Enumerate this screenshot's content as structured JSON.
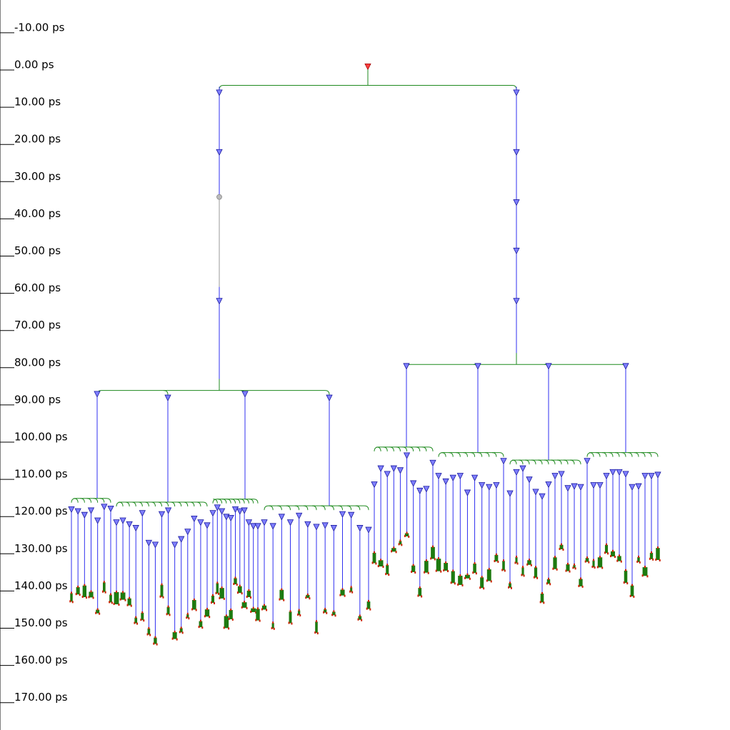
{
  "time_axis": {
    "unit": "ps",
    "tick_labels": [
      "-10.00 ps",
      "0.00 ps",
      "10.00 ps",
      "20.00 ps",
      "30.00 ps",
      "40.00 ps",
      "50.00 ps",
      "60.00 ps",
      "70.00 ps",
      "80.00 ps",
      "90.00 ps",
      "100.00 ps",
      "110.00 ps",
      "120.00 ps",
      "130.00 ps",
      "140.00 ps",
      "150.00 ps",
      "160.00 ps",
      "170.00 ps"
    ]
  },
  "colors": {
    "axis": "#000000",
    "trunk_line": "#2f2ff0",
    "branch_curve": "#1f8a1f",
    "node_fill": "#7f7fff",
    "node_stroke": "#1a1aa0",
    "root_fill": "#ff4040",
    "root_stroke": "#a00000",
    "grey_node": "#bbbbbb",
    "leaf_fill": "#1d7a10",
    "leaf_accent": "#cc2200"
  },
  "tree": {
    "root_time_ps": -0.5,
    "split_time_ps": 4.5,
    "branches": [
      {
        "id": "left",
        "marker_times_ps": [
          6.5,
          22.5
        ],
        "grey_marker_ps": 34.5,
        "marker_after_ps": 62.5,
        "split_time_ps": 86.5,
        "groups": [
          {
            "split_ps": 87.5,
            "children_ps": [
              118.5,
              119,
              120,
              118.8,
              121.5,
              117.8,
              118.3
            ]
          },
          {
            "split_ps": 88.5,
            "children_ps": [
              122,
              121.5,
              122.5,
              123.5,
              119.5,
              127.5,
              128,
              119.8,
              118.8,
              128,
              126.5,
              124.5,
              121,
              122,
              122.8
            ]
          },
          {
            "split_ps": 87.5,
            "children_ps": [
              119.5,
              118,
              119,
              120.5,
              120.8,
              118.5,
              119,
              118.8,
              122,
              123,
              123
            ]
          },
          {
            "split_ps": 88.5,
            "children_ps": [
              122,
              123,
              120.5,
              122,
              120.2,
              122.5,
              123.2,
              122.8,
              123.5,
              119.8,
              120,
              123.5,
              124
            ]
          }
        ]
      },
      {
        "id": "right",
        "marker_times_ps": [
          6.5,
          22.5,
          36,
          49,
          62.5
        ],
        "split_time_ps": 79.5,
        "groups": [
          {
            "split_ps": 80,
            "children_ps": [
              111.8,
              107.5,
              109,
              107.5,
              108,
              104,
              111.5,
              113.5,
              113,
              106
            ]
          },
          {
            "split_ps": 80,
            "children_ps": [
              109.5,
              111,
              110,
              109.5,
              114,
              110,
              112,
              112.5,
              112,
              105.5
            ]
          },
          {
            "split_ps": 80,
            "children_ps": [
              114.2,
              108.5,
              107.5,
              110.5,
              113.8,
              115,
              111.8,
              109.5,
              109,
              112.8,
              112.3,
              112.5
            ]
          },
          {
            "split_ps": 80,
            "children_ps": [
              105.5,
              112,
              112,
              109.5,
              108.5,
              108.5,
              109,
              112.5,
              112.3,
              109.5,
              109.5,
              109.2
            ]
          }
        ]
      }
    ]
  }
}
